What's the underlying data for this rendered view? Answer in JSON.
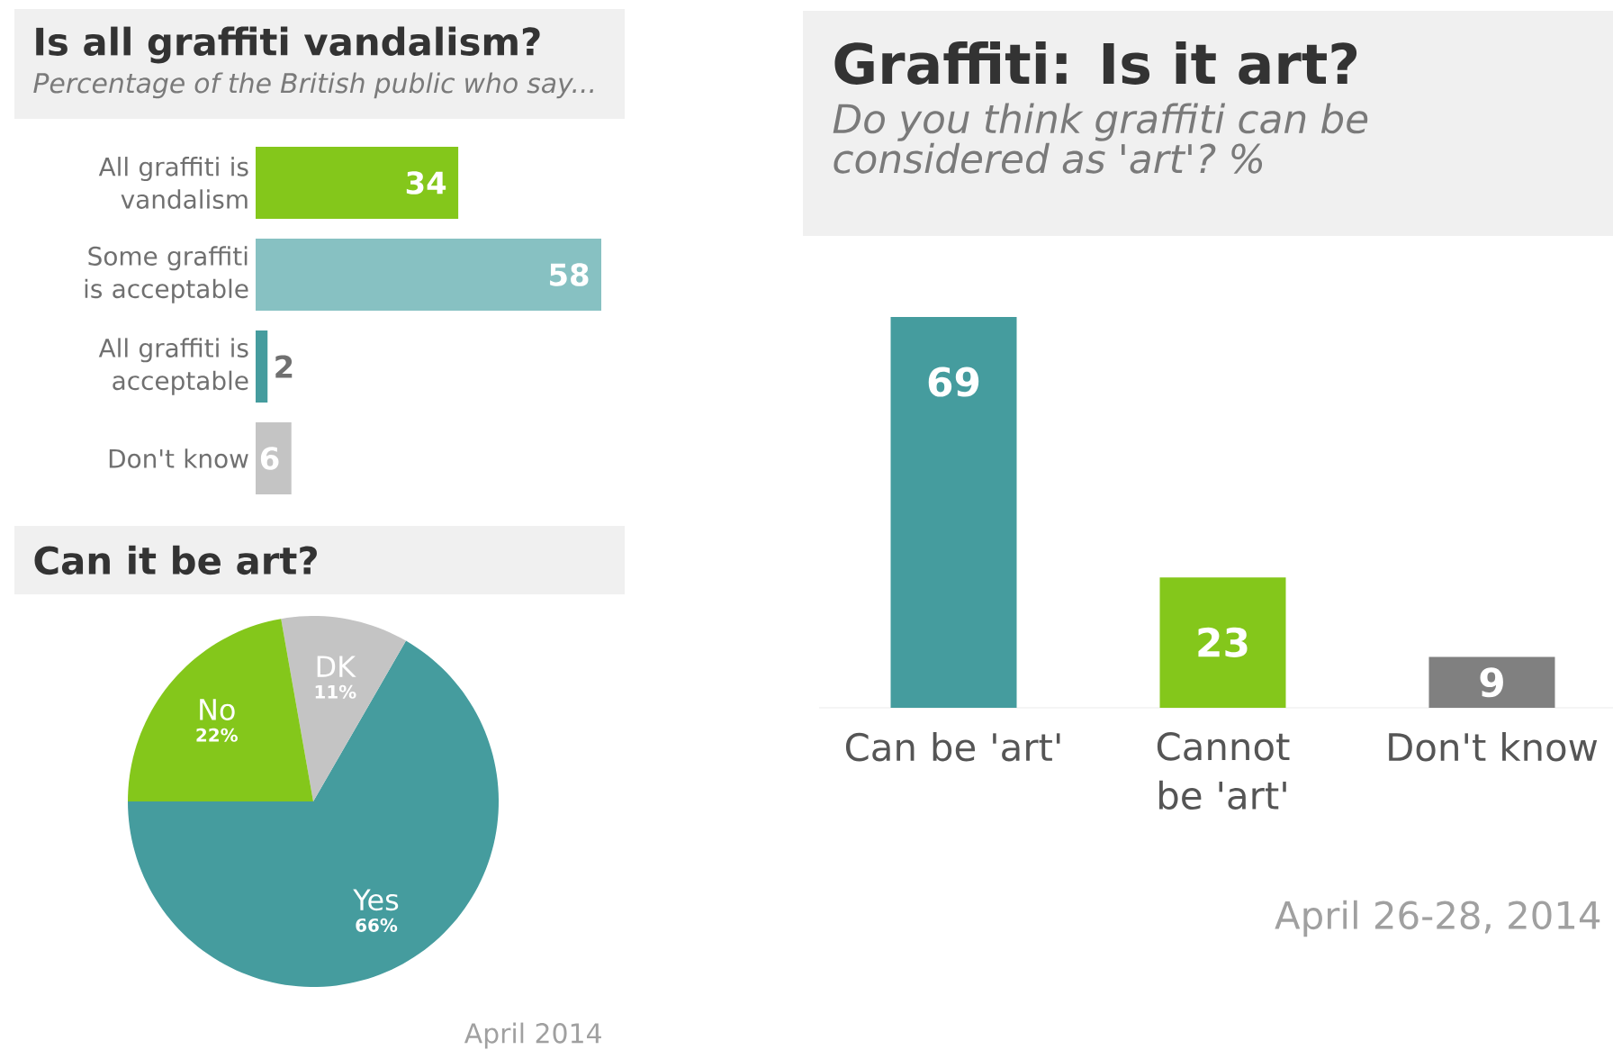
{
  "chart_data": [
    {
      "type": "bar",
      "orientation": "horizontal",
      "title": "Is all graffiti vandalism?",
      "subtitle": "Percentage of the British public who say...",
      "categories": [
        "All graffiti is vandalism",
        "Some graffiti is acceptable",
        "All graffiti is acceptable",
        "Don't know"
      ],
      "values": [
        34,
        58,
        2,
        6
      ],
      "colors": [
        "#84c71b",
        "#87c1c2",
        "#459c9e",
        "#c4c4c4"
      ],
      "data_labels": true
    },
    {
      "type": "pie",
      "title": "Can it be art?",
      "categories": [
        "Yes",
        "DK",
        "No"
      ],
      "values": [
        66,
        11,
        22
      ],
      "value_labels": [
        "66%",
        "11%",
        "22%"
      ],
      "colors": [
        "#459c9e",
        "#c4c4c4",
        "#84c71b"
      ],
      "annotations": [
        "April 2014"
      ]
    },
    {
      "type": "bar",
      "title": "Graffiti: Is it art?",
      "subtitle": "Do you think graffiti can be considered as 'art'? %",
      "categories": [
        "Can be 'art'",
        "Cannot be 'art'",
        "Don't know"
      ],
      "values": [
        69,
        23,
        9
      ],
      "colors": [
        "#459c9e",
        "#84c71b",
        "#808080"
      ],
      "data_labels": true,
      "annotations": [
        "April 26-28, 2014"
      ]
    }
  ]
}
